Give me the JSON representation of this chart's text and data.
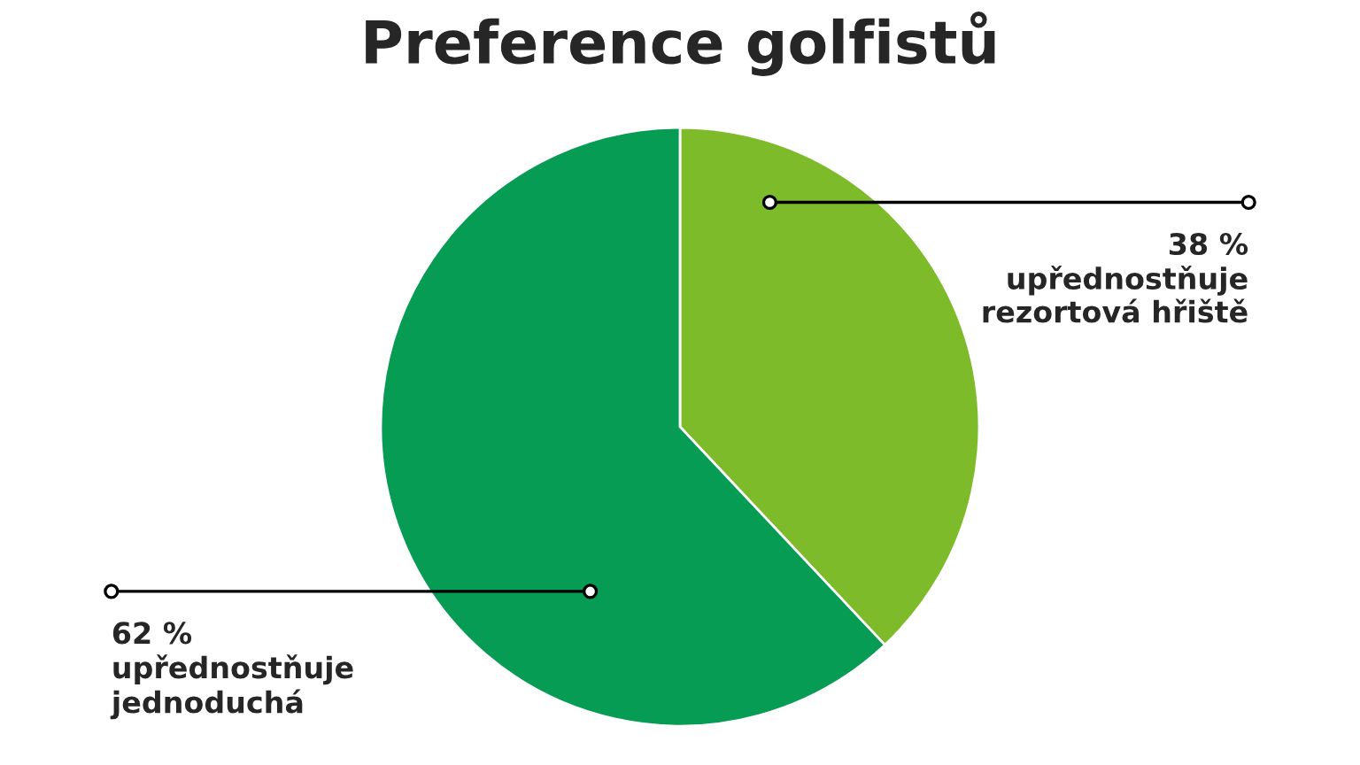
{
  "chart_data": {
    "type": "pie",
    "title": "Preference golfistů",
    "categories": [
      "upřednostňuje rezortová hřiště",
      "upřednostňuje jednoduchá"
    ],
    "values": [
      38,
      62
    ],
    "value_labels": [
      "38 %",
      "62 %"
    ],
    "colors": [
      "#7dbb2a",
      "#069c54"
    ]
  }
}
